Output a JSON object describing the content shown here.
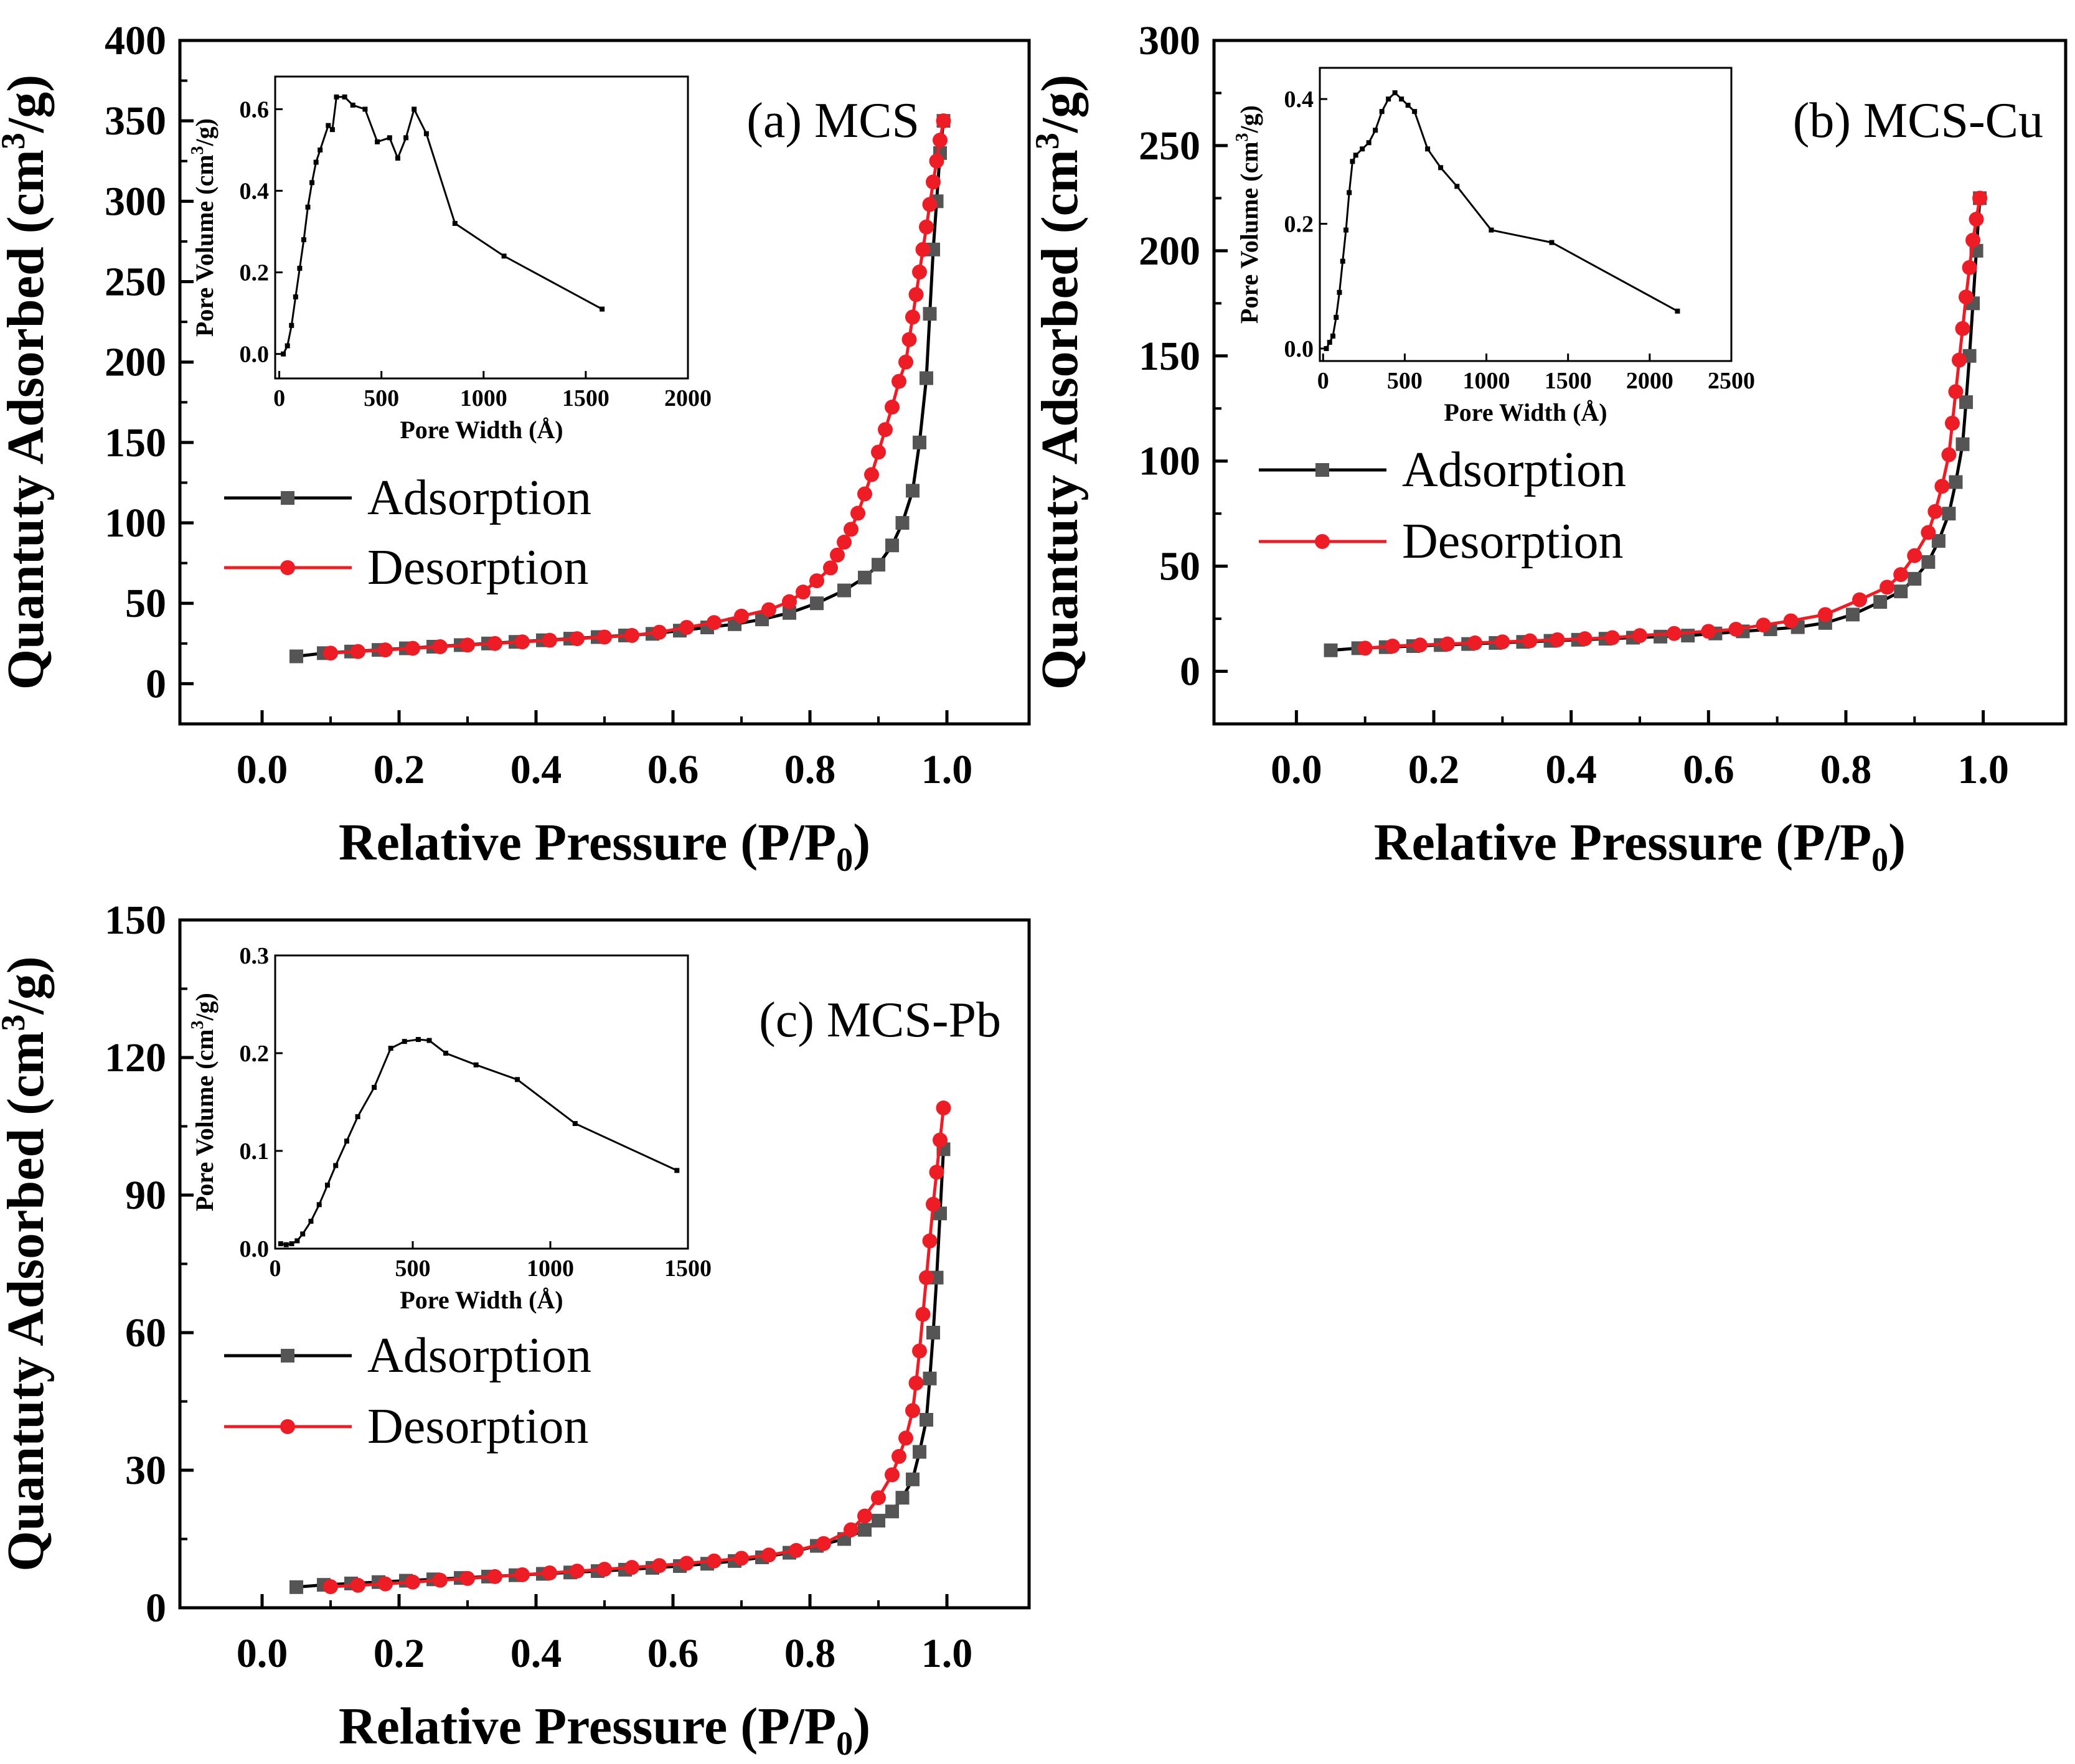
{
  "chart_data": [
    {
      "type": "line",
      "panel_label": "(a) MCS",
      "xlabel": "Relative Pressure (P/P",
      "xlabel_sub": "0",
      "xlabel_end": ")",
      "ylabel": "Quantuty Adsorbed (cm",
      "ylabel_sup": "3",
      "ylabel_end": "/g)",
      "xlim": [
        -0.12,
        1.12
      ],
      "ylim": [
        -25,
        400
      ],
      "xticks": [
        "0.0",
        "0.2",
        "0.4",
        "0.6",
        "0.8",
        "1.0"
      ],
      "yticks": [
        "0",
        "50",
        "100",
        "150",
        "200",
        "250",
        "300",
        "350",
        "400"
      ],
      "legend_position": "middle-left",
      "series": [
        {
          "name": "Adsorption",
          "color": "#555555",
          "line_color": "#000000",
          "marker": "square",
          "x": [
            0.05,
            0.09,
            0.13,
            0.17,
            0.21,
            0.25,
            0.29,
            0.33,
            0.37,
            0.41,
            0.45,
            0.49,
            0.53,
            0.57,
            0.61,
            0.65,
            0.69,
            0.73,
            0.77,
            0.81,
            0.85,
            0.88,
            0.9,
            0.92,
            0.935,
            0.95,
            0.96,
            0.97,
            0.975,
            0.98,
            0.985,
            0.99,
            0.995
          ],
          "y": [
            17,
            19,
            20,
            21,
            22,
            23,
            24,
            25,
            26,
            27,
            28,
            29,
            30,
            31,
            33,
            35,
            37,
            40,
            44,
            50,
            58,
            66,
            74,
            86,
            100,
            120,
            150,
            190,
            230,
            270,
            300,
            330,
            350
          ]
        },
        {
          "name": "Desorption",
          "color": "#ee1c25",
          "line_color": "#ee1c25",
          "marker": "circle",
          "x": [
            0.995,
            0.99,
            0.985,
            0.98,
            0.975,
            0.97,
            0.965,
            0.96,
            0.955,
            0.95,
            0.945,
            0.94,
            0.93,
            0.92,
            0.91,
            0.9,
            0.89,
            0.88,
            0.87,
            0.86,
            0.85,
            0.84,
            0.83,
            0.81,
            0.79,
            0.77,
            0.74,
            0.7,
            0.66,
            0.62,
            0.58,
            0.54,
            0.5,
            0.46,
            0.42,
            0.38,
            0.34,
            0.3,
            0.26,
            0.22,
            0.18,
            0.14,
            0.1
          ],
          "y": [
            350,
            338,
            325,
            312,
            298,
            284,
            270,
            256,
            242,
            228,
            214,
            200,
            188,
            172,
            158,
            144,
            130,
            118,
            106,
            96,
            88,
            80,
            72,
            64,
            57,
            51,
            46,
            42,
            38,
            35,
            32,
            30,
            29,
            28,
            27,
            26,
            25,
            24,
            23,
            22,
            21,
            20,
            19
          ]
        }
      ],
      "inset": {
        "xlabel": "Pore Width (Å)",
        "ylabel": "Pore Volume (cm",
        "ylabel_sup": "3",
        "ylabel_end": "/g)",
        "xlim": [
          -20,
          2000
        ],
        "ylim": [
          -0.06,
          0.68
        ],
        "xticks": [
          "0",
          "500",
          "1000",
          "1500",
          "2000"
        ],
        "yticks": [
          "0.0",
          "0.2",
          "0.4",
          "0.6"
        ],
        "x": [
          20,
          40,
          60,
          80,
          100,
          120,
          140,
          160,
          180,
          200,
          240,
          260,
          280,
          320,
          360,
          420,
          480,
          540,
          580,
          620,
          660,
          720,
          860,
          1100,
          1580
        ],
        "y": [
          0.0,
          0.02,
          0.07,
          0.14,
          0.21,
          0.28,
          0.36,
          0.42,
          0.47,
          0.5,
          0.56,
          0.55,
          0.63,
          0.63,
          0.61,
          0.6,
          0.52,
          0.53,
          0.48,
          0.53,
          0.6,
          0.54,
          0.32,
          0.24,
          0.11
        ]
      }
    },
    {
      "type": "line",
      "panel_label": "(b) MCS-Cu",
      "xlabel": "Relative Pressure (P/P",
      "xlabel_sub": "0",
      "xlabel_end": ")",
      "ylabel": "Quantuty Adsorbed (cm",
      "ylabel_sup": "3",
      "ylabel_end": "/g)",
      "xlim": [
        -0.12,
        1.12
      ],
      "ylim": [
        -25,
        300
      ],
      "xticks": [
        "0.0",
        "0.2",
        "0.4",
        "0.6",
        "0.8",
        "1.0"
      ],
      "yticks": [
        "0",
        "50",
        "100",
        "150",
        "200",
        "250",
        "300"
      ],
      "legend_position": "middle-left",
      "series": [
        {
          "name": "Adsorption",
          "color": "#555555",
          "line_color": "#000000",
          "marker": "square",
          "x": [
            0.05,
            0.09,
            0.13,
            0.17,
            0.21,
            0.25,
            0.29,
            0.33,
            0.37,
            0.41,
            0.45,
            0.49,
            0.53,
            0.57,
            0.61,
            0.65,
            0.69,
            0.73,
            0.77,
            0.81,
            0.85,
            0.88,
            0.9,
            0.92,
            0.935,
            0.95,
            0.96,
            0.97,
            0.975,
            0.98,
            0.985,
            0.99,
            0.995
          ],
          "y": [
            10,
            11,
            11.5,
            12,
            12.5,
            13,
            13.5,
            14,
            14.5,
            15,
            15.5,
            16,
            16.5,
            17,
            18,
            19,
            20,
            21,
            23,
            27,
            33,
            38,
            44,
            52,
            62,
            75,
            90,
            108,
            128,
            150,
            175,
            200,
            225
          ]
        },
        {
          "name": "Desorption",
          "color": "#ee1c25",
          "line_color": "#ee1c25",
          "marker": "circle",
          "x": [
            0.995,
            0.99,
            0.985,
            0.98,
            0.975,
            0.97,
            0.965,
            0.96,
            0.955,
            0.95,
            0.94,
            0.93,
            0.92,
            0.9,
            0.88,
            0.86,
            0.82,
            0.77,
            0.72,
            0.68,
            0.64,
            0.6,
            0.55,
            0.5,
            0.46,
            0.42,
            0.38,
            0.34,
            0.3,
            0.26,
            0.22,
            0.18,
            0.14,
            0.1
          ],
          "y": [
            225,
            215,
            205,
            192,
            178,
            163,
            148,
            133,
            118,
            103,
            88,
            76,
            66,
            55,
            46,
            40,
            34,
            27,
            24,
            22,
            20,
            19,
            18,
            17,
            16,
            15.5,
            15,
            14.5,
            14,
            13.5,
            13,
            12.5,
            12,
            11
          ]
        }
      ],
      "inset": {
        "xlabel": "Pore Width (Å)",
        "ylabel": "Pore Volume (cm",
        "ylabel_sup": "3",
        "ylabel_end": "/g)",
        "xlim": [
          -20,
          2500
        ],
        "ylim": [
          -0.02,
          0.45
        ],
        "xticks": [
          "0",
          "500",
          "1000",
          "1500",
          "2000",
          "2500"
        ],
        "yticks": [
          "0.0",
          "0.2",
          "0.4"
        ],
        "x": [
          20,
          40,
          60,
          80,
          100,
          120,
          140,
          160,
          180,
          200,
          240,
          280,
          320,
          360,
          400,
          440,
          480,
          520,
          560,
          640,
          720,
          820,
          1030,
          1400,
          2170
        ],
        "y": [
          0.0,
          0.01,
          0.02,
          0.05,
          0.09,
          0.14,
          0.19,
          0.25,
          0.3,
          0.31,
          0.32,
          0.33,
          0.35,
          0.38,
          0.4,
          0.41,
          0.4,
          0.39,
          0.38,
          0.32,
          0.29,
          0.26,
          0.19,
          0.17,
          0.06
        ]
      }
    },
    {
      "type": "line",
      "panel_label": "(c) MCS-Pb",
      "xlabel": "Relative Pressure (P/P",
      "xlabel_sub": "0",
      "xlabel_end": ")",
      "ylabel": "Quantuty Adsorbed (cm",
      "ylabel_sup": "3",
      "ylabel_end": "/g)",
      "xlim": [
        -0.12,
        1.12
      ],
      "ylim": [
        0,
        150
      ],
      "xticks": [
        "0.0",
        "0.2",
        "0.4",
        "0.6",
        "0.8",
        "1.0"
      ],
      "yticks": [
        "0",
        "30",
        "60",
        "90",
        "120",
        "150"
      ],
      "legend_position": "middle-left",
      "series": [
        {
          "name": "Adsorption",
          "color": "#555555",
          "line_color": "#000000",
          "marker": "square",
          "x": [
            0.05,
            0.09,
            0.13,
            0.17,
            0.21,
            0.25,
            0.29,
            0.33,
            0.37,
            0.41,
            0.45,
            0.49,
            0.53,
            0.57,
            0.61,
            0.65,
            0.69,
            0.73,
            0.77,
            0.81,
            0.85,
            0.88,
            0.9,
            0.92,
            0.935,
            0.95,
            0.96,
            0.97,
            0.975,
            0.98,
            0.985,
            0.99,
            0.995
          ],
          "y": [
            4.5,
            5,
            5.3,
            5.6,
            5.9,
            6.2,
            6.5,
            6.8,
            7.1,
            7.4,
            7.7,
            8,
            8.3,
            8.7,
            9.1,
            9.6,
            10.2,
            11,
            12,
            13.5,
            15,
            17,
            19,
            21,
            24,
            28,
            34,
            41,
            50,
            60,
            72,
            86,
            100
          ]
        },
        {
          "name": "Desorption",
          "color": "#ee1c25",
          "line_color": "#ee1c25",
          "marker": "circle",
          "x": [
            0.995,
            0.99,
            0.985,
            0.98,
            0.975,
            0.97,
            0.965,
            0.96,
            0.955,
            0.95,
            0.94,
            0.93,
            0.92,
            0.9,
            0.88,
            0.86,
            0.82,
            0.78,
            0.74,
            0.7,
            0.66,
            0.62,
            0.58,
            0.54,
            0.5,
            0.46,
            0.42,
            0.38,
            0.34,
            0.3,
            0.26,
            0.22,
            0.18,
            0.14,
            0.1
          ],
          "y": [
            109,
            102,
            95,
            88,
            80,
            72,
            64,
            56,
            49,
            43,
            37,
            33,
            29,
            24,
            20,
            17,
            14,
            12.5,
            11.5,
            10.8,
            10.2,
            9.7,
            9.2,
            8.8,
            8.4,
            8,
            7.6,
            7.2,
            6.8,
            6.4,
            6,
            5.6,
            5.2,
            4.9,
            4.6
          ]
        }
      ],
      "inset": {
        "xlabel": "Pore Width (Å)",
        "ylabel": "Pore Volume (cm",
        "ylabel_sup": "3",
        "ylabel_end": "/g)",
        "xlim": [
          0,
          1500
        ],
        "ylim": [
          0,
          0.3
        ],
        "xticks": [
          "0",
          "500",
          "1000",
          "1500"
        ],
        "yticks": [
          "0.0",
          "0.1",
          "0.2",
          "0.3"
        ],
        "x": [
          20,
          40,
          60,
          80,
          100,
          130,
          160,
          190,
          220,
          260,
          300,
          360,
          420,
          470,
          520,
          560,
          620,
          730,
          880,
          1090,
          1460
        ],
        "y": [
          0.005,
          0.004,
          0.005,
          0.008,
          0.015,
          0.028,
          0.045,
          0.065,
          0.085,
          0.11,
          0.135,
          0.165,
          0.205,
          0.212,
          0.214,
          0.213,
          0.2,
          0.188,
          0.173,
          0.128,
          0.08
        ]
      }
    }
  ]
}
